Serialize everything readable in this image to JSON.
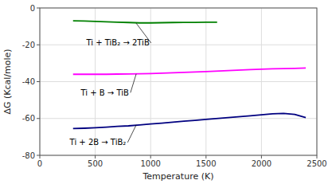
{
  "chart_data": {
    "type": "line",
    "xlabel": "Temperature (K)",
    "ylabel": "ΔG (Kcal/mole)",
    "xlim": [
      0,
      2500
    ],
    "ylim": [
      -80,
      0
    ],
    "xticks": [
      0,
      500,
      1000,
      1500,
      2000,
      2500
    ],
    "yticks": [
      0,
      -20,
      -40,
      -60,
      -80
    ],
    "grid": true,
    "series": [
      {
        "color": "#008000",
        "x": [
          300,
          400,
          500,
          600,
          700,
          800,
          900,
          1000,
          1100,
          1200,
          1300,
          1400,
          1500,
          1600
        ],
        "values": [
          -7.0,
          -7.1,
          -7.3,
          -7.5,
          -7.7,
          -7.9,
          -8.1,
          -8.1,
          -8.0,
          -7.9,
          -7.8,
          -7.8,
          -7.7,
          -7.7
        ]
      },
      {
        "color": "#ff00ff",
        "x": [
          300,
          400,
          500,
          600,
          700,
          800,
          900,
          1000,
          1100,
          1200,
          1300,
          1400,
          1500,
          1700,
          1900,
          2100,
          2300,
          2400
        ],
        "values": [
          -36.0,
          -36.0,
          -36.0,
          -36.0,
          -35.9,
          -35.8,
          -35.7,
          -35.6,
          -35.4,
          -35.2,
          -35.0,
          -34.8,
          -34.5,
          -34.0,
          -33.5,
          -33.0,
          -32.8,
          -32.6
        ]
      },
      {
        "color": "#000080",
        "x": [
          300,
          400,
          500,
          600,
          700,
          800,
          900,
          1000,
          1100,
          1200,
          1300,
          1400,
          1500,
          1700,
          1900,
          2100,
          2200,
          2300,
          2400
        ],
        "values": [
          -65.5,
          -65.3,
          -65.0,
          -64.7,
          -64.3,
          -64.0,
          -63.5,
          -63.0,
          -62.5,
          -62.0,
          -61.5,
          -61.0,
          -60.5,
          -59.5,
          -58.5,
          -57.5,
          -57.2,
          -57.8,
          -59.5
        ]
      }
    ],
    "annotations": [
      {
        "text": "Ti + TiB₂ → 2TiB",
        "xy": [
          870,
          -8.3
        ],
        "xytext": [
          420,
          -19
        ]
      },
      {
        "text": "Ti + B → TiB",
        "xy": [
          870,
          -35.8
        ],
        "xytext": [
          370,
          -46
        ]
      },
      {
        "text": "Ti + 2B → TiB₂",
        "xy": [
          870,
          -63.5
        ],
        "xytext": [
          270,
          -73
        ]
      }
    ]
  }
}
